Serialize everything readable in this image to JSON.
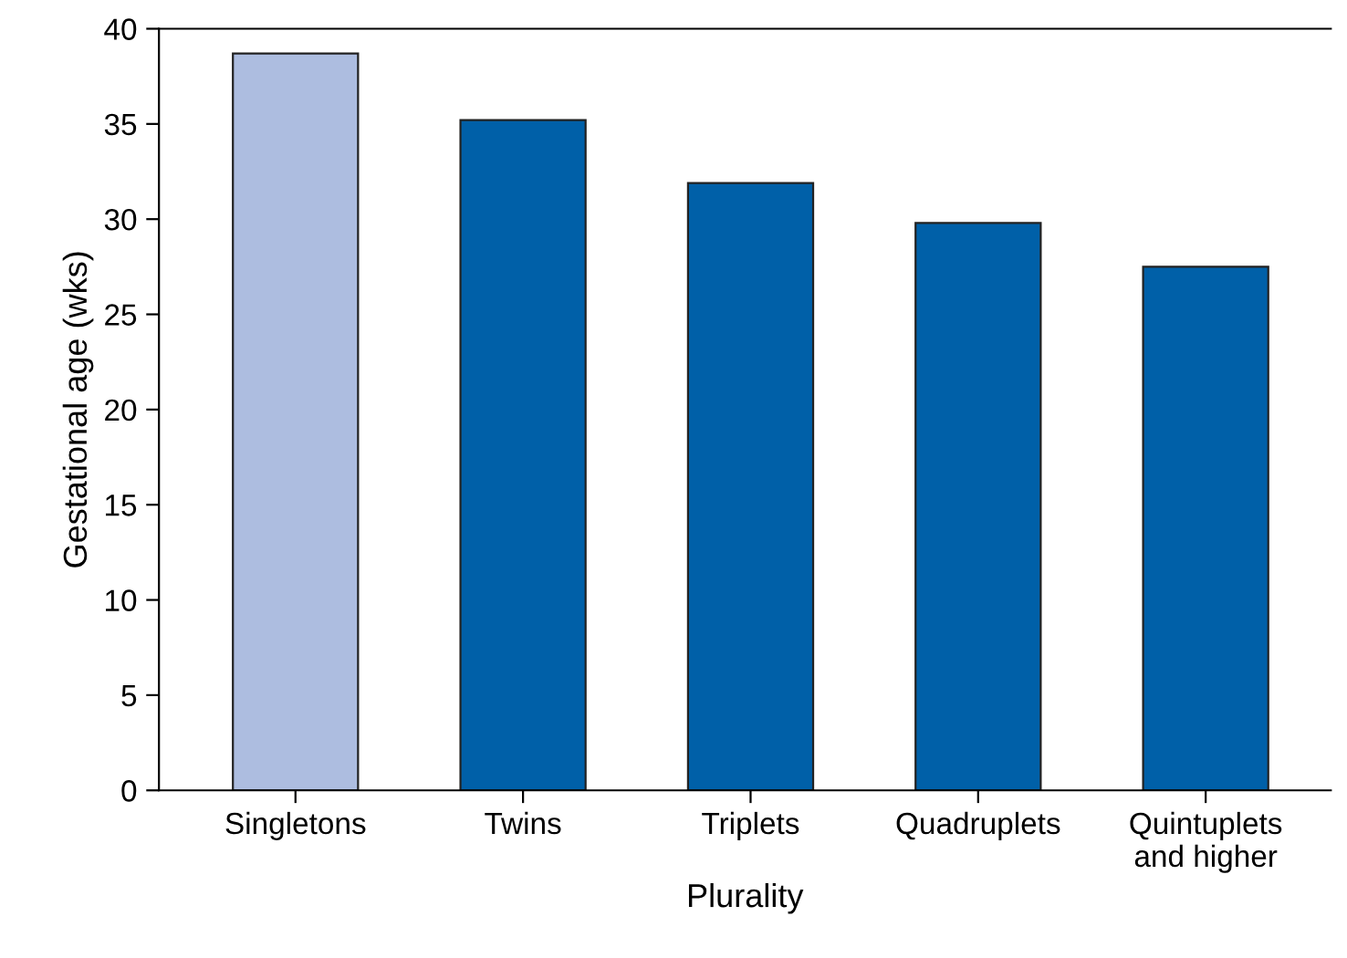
{
  "chart_data": {
    "type": "bar",
    "xlabel": "Plurality",
    "ylabel": "Gestational age (wks)",
    "categories": [
      "Singletons",
      "Twins",
      "Triplets",
      "Quadruplets",
      "Quintuplets\nand higher"
    ],
    "values": [
      38.7,
      35.2,
      31.9,
      29.8,
      27.5
    ],
    "colors": [
      "#adbde0",
      "#0060a8",
      "#0060a8",
      "#0060a8",
      "#0060a8"
    ],
    "ylim": [
      0,
      40
    ],
    "yticks": [
      0,
      5,
      10,
      15,
      20,
      25,
      30,
      35,
      40
    ],
    "grid": false,
    "legend": false
  }
}
